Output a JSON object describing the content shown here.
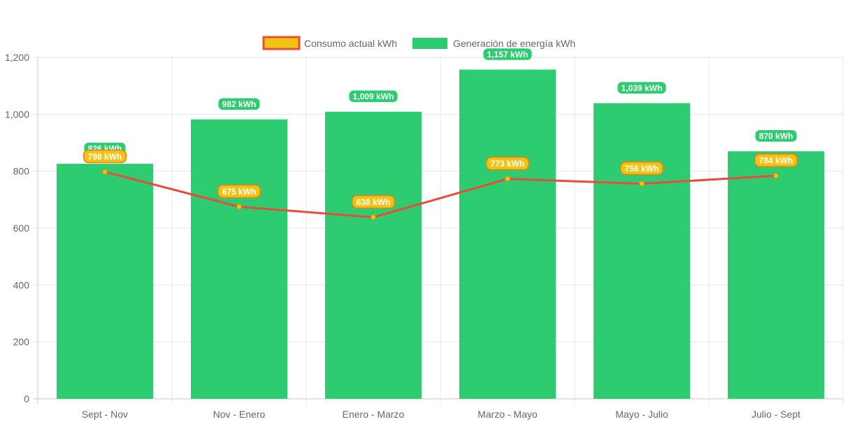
{
  "chart_data": {
    "type": "bar",
    "categories": [
      "Sept - Nov",
      "Nov - Enero",
      "Enero - Marzo",
      "Marzo - Mayo",
      "Mayo - Julio",
      "Julio - Sept"
    ],
    "series": [
      {
        "name": "Consumo actual kWh",
        "type": "line",
        "values": [
          798,
          675,
          638,
          773,
          756,
          784
        ],
        "labels": [
          "798 kWh",
          "675 kWh",
          "638 kWh",
          "773 kWh",
          "756 kWh",
          "784 kWh"
        ],
        "color": "#e74c3c",
        "point_color": "#f1c40f"
      },
      {
        "name": "Generación de energía kWh",
        "type": "bar",
        "values": [
          826,
          982,
          1009,
          1157,
          1039,
          870
        ],
        "labels": [
          "826 kWh",
          "982 kWh",
          "1,009 kWh",
          "1,157 kWh",
          "1,039 kWh",
          "870 kWh"
        ],
        "color": "#2ecc71"
      }
    ],
    "ylim": [
      0,
      1200
    ],
    "yticks": [
      0,
      200,
      400,
      600,
      800,
      1000,
      1200
    ],
    "ytick_labels": [
      "0",
      "200",
      "400",
      "600",
      "800",
      "1,000",
      "1,200"
    ],
    "grid": true,
    "legend_position": "top-center"
  }
}
